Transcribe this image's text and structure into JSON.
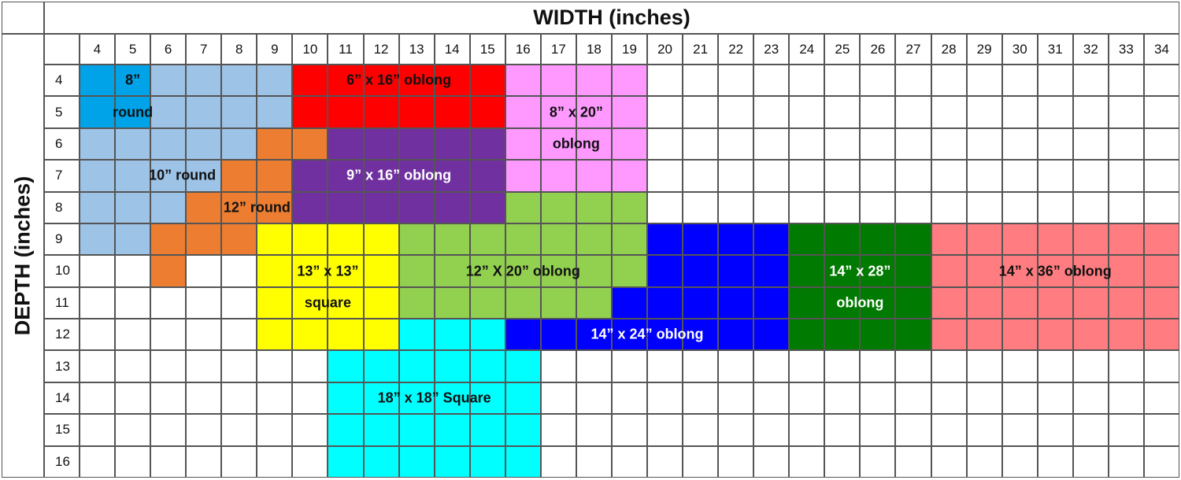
{
  "chart_data": {
    "type": "table",
    "title": "",
    "xlabel": "WIDTH (inches)",
    "ylabel": "DEPTH (inches)",
    "x_ticks": [
      4,
      5,
      6,
      7,
      8,
      9,
      10,
      11,
      12,
      13,
      14,
      15,
      16,
      17,
      18,
      19,
      20,
      21,
      22,
      23,
      24,
      25,
      26,
      27,
      28,
      29,
      30,
      31,
      32,
      33,
      34
    ],
    "y_ticks": [
      4,
      5,
      6,
      7,
      8,
      9,
      10,
      11,
      12,
      13,
      14,
      15,
      16
    ],
    "regions": [
      {
        "name": "8\" round",
        "color": "#00a2e8",
        "cells": [
          [
            4,
            4
          ],
          [
            5,
            4
          ],
          [
            4,
            5
          ],
          [
            5,
            5
          ]
        ],
        "labels": [
          {
            "text": "8”",
            "x": 5.0,
            "y": 4.0,
            "text_color": "#111111"
          },
          {
            "text": "round",
            "x": 5.0,
            "y": 5.0,
            "text_color": "#111111"
          }
        ]
      },
      {
        "name": "10\" round",
        "color": "#9dc3e6",
        "cells": [
          [
            6,
            4
          ],
          [
            7,
            4
          ],
          [
            8,
            4
          ],
          [
            9,
            4
          ],
          [
            6,
            5
          ],
          [
            7,
            5
          ],
          [
            8,
            5
          ],
          [
            9,
            5
          ],
          [
            4,
            6
          ],
          [
            5,
            6
          ],
          [
            6,
            6
          ],
          [
            7,
            6
          ],
          [
            8,
            6
          ],
          [
            4,
            7
          ],
          [
            5,
            7
          ],
          [
            6,
            7
          ],
          [
            7,
            7
          ],
          [
            4,
            8
          ],
          [
            5,
            8
          ],
          [
            6,
            8
          ],
          [
            4,
            9
          ],
          [
            5,
            9
          ]
        ],
        "labels": [
          {
            "text": "10” round",
            "x": 6.4,
            "y": 7.0,
            "text_color": "#111111"
          }
        ]
      },
      {
        "name": "12\" round",
        "color": "#ed7d31",
        "cells": [
          [
            9,
            6
          ],
          [
            10,
            6
          ],
          [
            8,
            7
          ],
          [
            9,
            7
          ],
          [
            7,
            8
          ],
          [
            8,
            8
          ],
          [
            9,
            8
          ],
          [
            6,
            9
          ],
          [
            7,
            9
          ],
          [
            8,
            9
          ],
          [
            6,
            10
          ]
        ],
        "labels": [
          {
            "text": "12” round",
            "x": 8.5,
            "y": 8.0,
            "text_color": "#111111"
          }
        ]
      },
      {
        "name": "6\" x 16\" oblong",
        "color": "#ff0000",
        "cells": [
          [
            10,
            4
          ],
          [
            11,
            4
          ],
          [
            12,
            4
          ],
          [
            13,
            4
          ],
          [
            14,
            4
          ],
          [
            15,
            4
          ],
          [
            10,
            5
          ],
          [
            11,
            5
          ],
          [
            12,
            5
          ],
          [
            13,
            5
          ],
          [
            14,
            5
          ],
          [
            15,
            5
          ]
        ],
        "labels": [
          {
            "text": "6” x 16” oblong",
            "x": 12.5,
            "y": 4.0,
            "text_color": "#111111"
          }
        ]
      },
      {
        "name": "9\" x 16\" oblong",
        "color": "#7030a0",
        "cells": [
          [
            11,
            6
          ],
          [
            12,
            6
          ],
          [
            13,
            6
          ],
          [
            14,
            6
          ],
          [
            15,
            6
          ],
          [
            10,
            7
          ],
          [
            11,
            7
          ],
          [
            12,
            7
          ],
          [
            13,
            7
          ],
          [
            14,
            7
          ],
          [
            15,
            7
          ],
          [
            10,
            8
          ],
          [
            11,
            8
          ],
          [
            12,
            8
          ],
          [
            13,
            8
          ],
          [
            14,
            8
          ],
          [
            15,
            8
          ]
        ],
        "labels": [
          {
            "text": "9” x 16” oblong",
            "x": 12.5,
            "y": 7.0,
            "text_color": "#ffffff"
          }
        ]
      },
      {
        "name": "8\" x 20\" oblong",
        "color": "#ff99ff",
        "cells": [
          [
            16,
            4
          ],
          [
            17,
            4
          ],
          [
            18,
            4
          ],
          [
            19,
            4
          ],
          [
            16,
            5
          ],
          [
            17,
            5
          ],
          [
            18,
            5
          ],
          [
            19,
            5
          ],
          [
            16,
            6
          ],
          [
            17,
            6
          ],
          [
            18,
            6
          ],
          [
            19,
            6
          ],
          [
            16,
            7
          ],
          [
            17,
            7
          ],
          [
            18,
            7
          ],
          [
            19,
            7
          ]
        ],
        "labels": [
          {
            "text": "8” x 20”",
            "x": 17.5,
            "y": 5.0,
            "text_color": "#111111"
          },
          {
            "text": "oblong",
            "x": 17.5,
            "y": 6.0,
            "text_color": "#111111"
          }
        ]
      },
      {
        "name": "12\" X 20\" oblong",
        "color": "#92d050",
        "cells": [
          [
            16,
            8
          ],
          [
            17,
            8
          ],
          [
            18,
            8
          ],
          [
            19,
            8
          ],
          [
            13,
            9
          ],
          [
            14,
            9
          ],
          [
            15,
            9
          ],
          [
            16,
            9
          ],
          [
            17,
            9
          ],
          [
            18,
            9
          ],
          [
            19,
            9
          ],
          [
            13,
            10
          ],
          [
            14,
            10
          ],
          [
            15,
            10
          ],
          [
            16,
            10
          ],
          [
            17,
            10
          ],
          [
            18,
            10
          ],
          [
            19,
            10
          ],
          [
            13,
            11
          ],
          [
            14,
            11
          ],
          [
            15,
            11
          ],
          [
            16,
            11
          ],
          [
            17,
            11
          ],
          [
            18,
            11
          ]
        ],
        "labels": [
          {
            "text": "12” X 20” oblong",
            "x": 16.0,
            "y": 10.0,
            "text_color": "#111111"
          }
        ]
      },
      {
        "name": "13\" x 13\" square",
        "color": "#ffff00",
        "cells": [
          [
            9,
            9
          ],
          [
            10,
            9
          ],
          [
            11,
            9
          ],
          [
            12,
            9
          ],
          [
            9,
            10
          ],
          [
            10,
            10
          ],
          [
            11,
            10
          ],
          [
            12,
            10
          ],
          [
            9,
            11
          ],
          [
            10,
            11
          ],
          [
            11,
            11
          ],
          [
            12,
            11
          ],
          [
            9,
            12
          ],
          [
            10,
            12
          ],
          [
            11,
            12
          ],
          [
            12,
            12
          ]
        ],
        "labels": [
          {
            "text": "13” x 13”",
            "x": 10.5,
            "y": 10.0,
            "text_color": "#111111"
          },
          {
            "text": "square",
            "x": 10.5,
            "y": 11.0,
            "text_color": "#111111"
          }
        ]
      },
      {
        "name": "14\" x 24\" oblong",
        "color": "#0000ff",
        "cells": [
          [
            20,
            9
          ],
          [
            21,
            9
          ],
          [
            22,
            9
          ],
          [
            23,
            9
          ],
          [
            20,
            10
          ],
          [
            21,
            10
          ],
          [
            22,
            10
          ],
          [
            23,
            10
          ],
          [
            19,
            11
          ],
          [
            20,
            11
          ],
          [
            21,
            11
          ],
          [
            22,
            11
          ],
          [
            23,
            11
          ],
          [
            16,
            12
          ],
          [
            17,
            12
          ],
          [
            18,
            12
          ],
          [
            19,
            12
          ],
          [
            20,
            12
          ],
          [
            21,
            12
          ],
          [
            22,
            12
          ],
          [
            23,
            12
          ]
        ],
        "labels": [
          {
            "text": "14” x 24” oblong",
            "x": 19.5,
            "y": 12.0,
            "text_color": "#ffffff"
          }
        ]
      },
      {
        "name": "14\" x 28\" oblong",
        "color": "#007a00",
        "cells": [
          [
            24,
            9
          ],
          [
            25,
            9
          ],
          [
            26,
            9
          ],
          [
            27,
            9
          ],
          [
            24,
            10
          ],
          [
            25,
            10
          ],
          [
            26,
            10
          ],
          [
            27,
            10
          ],
          [
            24,
            11
          ],
          [
            25,
            11
          ],
          [
            26,
            11
          ],
          [
            27,
            11
          ],
          [
            24,
            12
          ],
          [
            25,
            12
          ],
          [
            26,
            12
          ],
          [
            27,
            12
          ]
        ],
        "labels": [
          {
            "text": "14” x 28”",
            "x": 25.5,
            "y": 10.0,
            "text_color": "#ffffff"
          },
          {
            "text": "oblong",
            "x": 25.5,
            "y": 11.0,
            "text_color": "#ffffff"
          }
        ]
      },
      {
        "name": "14\" x 36\" oblong",
        "color": "#ff7c80",
        "cells": [
          [
            28,
            9
          ],
          [
            29,
            9
          ],
          [
            30,
            9
          ],
          [
            31,
            9
          ],
          [
            32,
            9
          ],
          [
            33,
            9
          ],
          [
            34,
            9
          ],
          [
            28,
            10
          ],
          [
            29,
            10
          ],
          [
            30,
            10
          ],
          [
            31,
            10
          ],
          [
            32,
            10
          ],
          [
            33,
            10
          ],
          [
            34,
            10
          ],
          [
            28,
            11
          ],
          [
            29,
            11
          ],
          [
            30,
            11
          ],
          [
            31,
            11
          ],
          [
            32,
            11
          ],
          [
            33,
            11
          ],
          [
            34,
            11
          ],
          [
            28,
            12
          ],
          [
            29,
            12
          ],
          [
            30,
            12
          ],
          [
            31,
            12
          ],
          [
            32,
            12
          ],
          [
            33,
            12
          ],
          [
            34,
            12
          ]
        ],
        "labels": [
          {
            "text": "14” x 36” oblong",
            "x": 31.0,
            "y": 10.0,
            "text_color": "#111111"
          }
        ]
      },
      {
        "name": "18\" x 18\" Square",
        "color": "#00ffff",
        "cells": [
          [
            13,
            12
          ],
          [
            14,
            12
          ],
          [
            15,
            12
          ],
          [
            11,
            13
          ],
          [
            12,
            13
          ],
          [
            13,
            13
          ],
          [
            14,
            13
          ],
          [
            15,
            13
          ],
          [
            16,
            13
          ],
          [
            11,
            14
          ],
          [
            12,
            14
          ],
          [
            13,
            14
          ],
          [
            14,
            14
          ],
          [
            15,
            14
          ],
          [
            16,
            14
          ],
          [
            11,
            15
          ],
          [
            12,
            15
          ],
          [
            13,
            15
          ],
          [
            14,
            15
          ],
          [
            15,
            15
          ],
          [
            16,
            15
          ],
          [
            11,
            16
          ],
          [
            12,
            16
          ],
          [
            13,
            16
          ],
          [
            14,
            16
          ],
          [
            15,
            16
          ],
          [
            16,
            16
          ]
        ],
        "labels": [
          {
            "text": "18” x 18” Square",
            "x": 13.5,
            "y": 14.0,
            "text_color": "#111111"
          }
        ]
      }
    ]
  }
}
